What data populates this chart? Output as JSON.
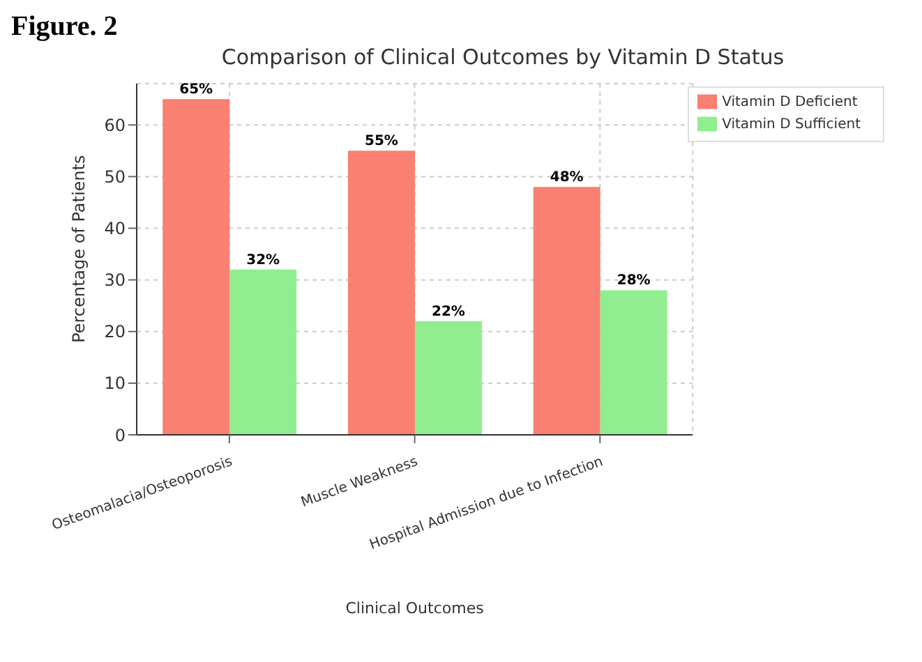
{
  "chart_data": {
    "type": "bar",
    "title": "Comparison of Clinical Outcomes by Vitamin D Status",
    "xlabel": "Clinical Outcomes",
    "ylabel": "Percentage of Patients",
    "annotations": [
      "Figure. 2"
    ],
    "categories": [
      "Osteomalacia/Osteoporosis",
      "Muscle Weakness",
      "Hospital Admission due to Infection"
    ],
    "series": [
      {
        "name": "Vitamin D Deficient",
        "color": "#fa8072",
        "values": [
          65,
          55,
          48
        ],
        "value_labels": [
          "65%",
          "55%",
          "48%"
        ]
      },
      {
        "name": "Vitamin D Sufficient",
        "color": "#90ee90",
        "values": [
          32,
          22,
          28
        ],
        "value_labels": [
          "32%",
          "22%",
          "28%"
        ]
      }
    ],
    "ylim": [
      0,
      68
    ],
    "yticks": [
      0,
      10,
      20,
      30,
      40,
      50,
      60
    ],
    "grid": true,
    "legend": "top right"
  }
}
